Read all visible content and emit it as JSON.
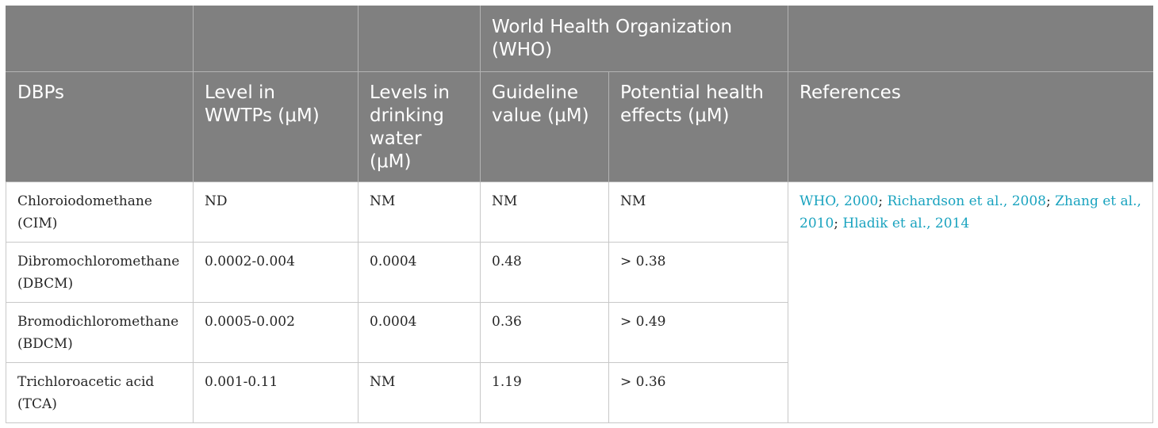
{
  "table": {
    "group_header": "World Health Organization (WHO)",
    "columns": [
      "DBPs",
      "Level in WWTPs (μM)",
      "Levels in drinking water (μM)",
      "Guideline value (μM)",
      "Potential health effects (μM)",
      "References"
    ],
    "rows": [
      {
        "dbp": "Chloroiodomethane (CIM)",
        "wwtp": "ND",
        "drinking": "NM",
        "guideline": "NM",
        "effects": "NM"
      },
      {
        "dbp": "Dibromochloromethane (DBCM)",
        "wwtp": "0.0002-0.004",
        "drinking": "0.0004",
        "guideline": "0.48",
        "effects": "> 0.38"
      },
      {
        "dbp": "Bromodichloromethane (BDCM)",
        "wwtp": "0.0005-0.002",
        "drinking": "0.0004",
        "guideline": "0.36",
        "effects": "> 0.49"
      },
      {
        "dbp": "Trichloroacetic acid (TCA)",
        "wwtp": "0.001-0.11",
        "drinking": "NM",
        "guideline": "1.19",
        "effects": "> 0.36"
      }
    ],
    "references": [
      {
        "text": "WHO, 2000",
        "sep": "; "
      },
      {
        "text": "Richardson et al., 2008",
        "sep": "; "
      },
      {
        "text": "Zhang et al., 2010",
        "sep": "; "
      },
      {
        "text": "Hladik et al., 2014",
        "sep": ""
      }
    ],
    "colors": {
      "header_bg": "#808080",
      "header_text": "#ffffff",
      "link": "#1aa3bf",
      "body_text": "#262626"
    }
  }
}
